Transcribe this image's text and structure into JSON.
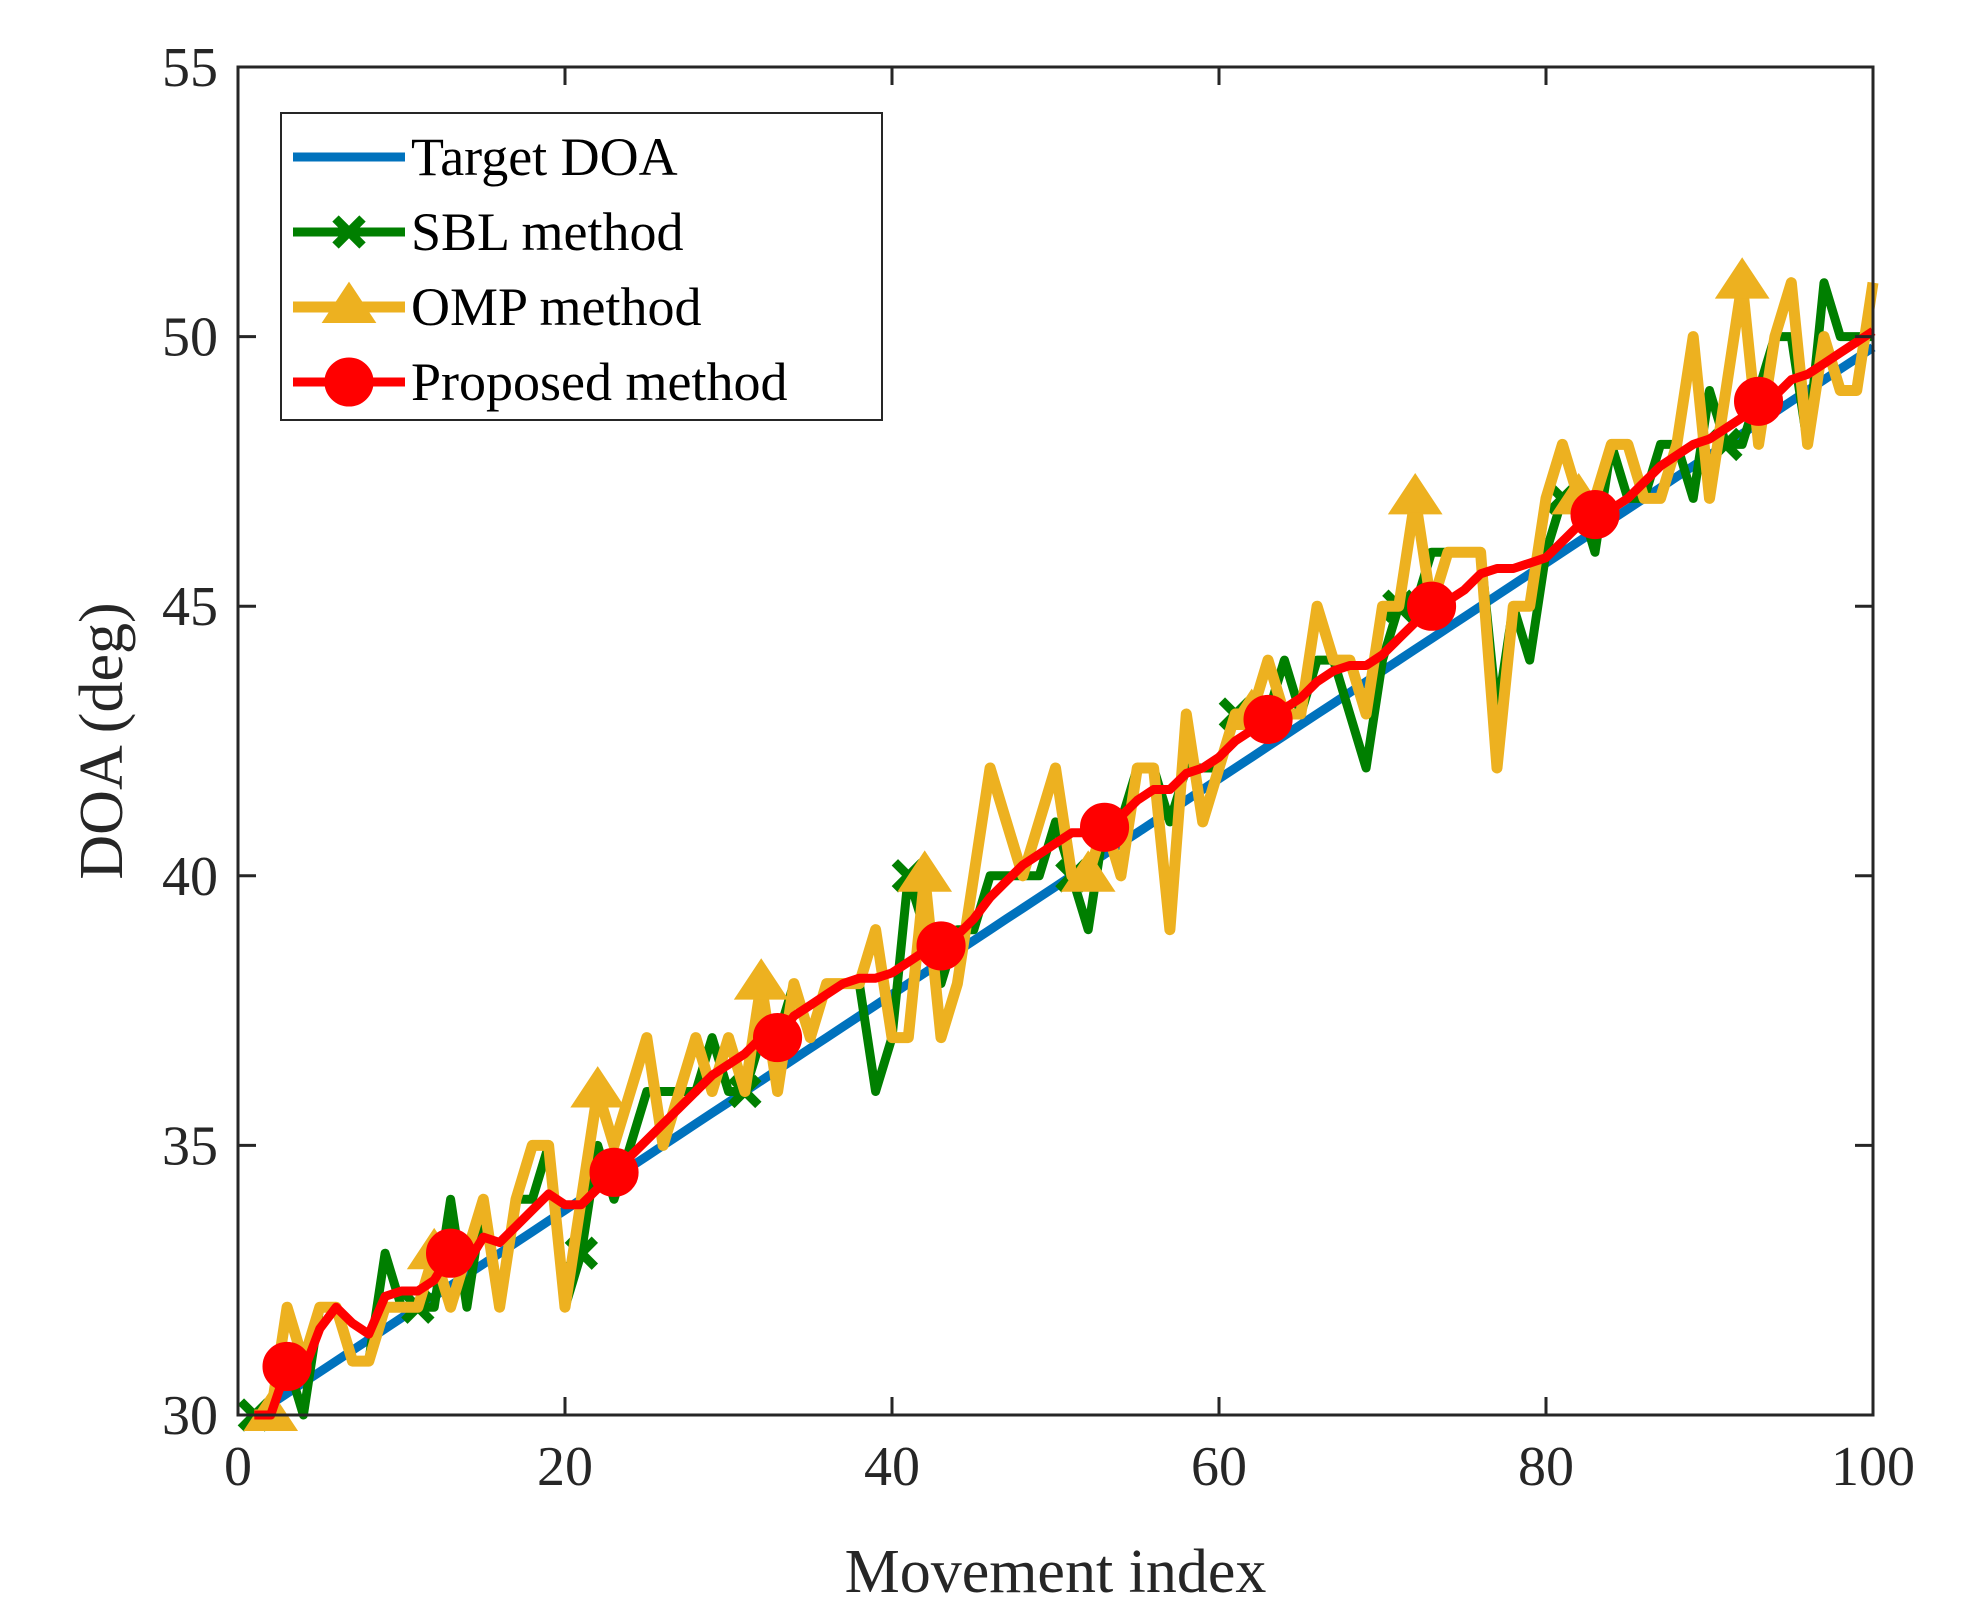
{
  "chart_data": {
    "type": "line",
    "title": "",
    "xlabel": "Movement index",
    "ylabel": "DOA (deg)",
    "xlim": [
      0,
      100
    ],
    "ylim": [
      30,
      55
    ],
    "xticks": [
      0,
      20,
      40,
      60,
      80,
      100
    ],
    "yticks": [
      30,
      35,
      40,
      45,
      50,
      55
    ],
    "xtick_labels": [
      "0",
      "20",
      "40",
      "60",
      "80",
      "100"
    ],
    "ytick_labels": [
      "30",
      "35",
      "40",
      "45",
      "50",
      "55"
    ],
    "grid": false,
    "legend": {
      "position": "top-left",
      "box": true
    },
    "x": [
      1,
      2,
      3,
      4,
      5,
      6,
      7,
      8,
      9,
      10,
      11,
      12,
      13,
      14,
      15,
      16,
      17,
      18,
      19,
      20,
      21,
      22,
      23,
      24,
      25,
      26,
      27,
      28,
      29,
      30,
      31,
      32,
      33,
      34,
      35,
      36,
      37,
      38,
      39,
      40,
      41,
      42,
      43,
      44,
      45,
      46,
      47,
      48,
      49,
      50,
      51,
      52,
      53,
      54,
      55,
      56,
      57,
      58,
      59,
      60,
      61,
      62,
      63,
      64,
      65,
      66,
      67,
      68,
      69,
      70,
      71,
      72,
      73,
      74,
      75,
      76,
      77,
      78,
      79,
      80,
      81,
      82,
      83,
      84,
      85,
      86,
      87,
      88,
      89,
      90,
      91,
      92,
      93,
      94,
      95,
      96,
      97,
      98,
      99,
      100
    ],
    "series": [
      {
        "name": "Target DOA",
        "color": "#0072BD",
        "marker": "none",
        "values": [
          30.0,
          30.2,
          30.4,
          30.6,
          30.8,
          31.0,
          31.2,
          31.4,
          31.6,
          31.8,
          32.0,
          32.2,
          32.4,
          32.6,
          32.8,
          33.0,
          33.2,
          33.4,
          33.6,
          33.8,
          34.0,
          34.2,
          34.4,
          34.6,
          34.8,
          35.0,
          35.2,
          35.4,
          35.6,
          35.8,
          36.0,
          36.2,
          36.4,
          36.6,
          36.8,
          37.0,
          37.2,
          37.4,
          37.6,
          37.8,
          38.0,
          38.2,
          38.4,
          38.6,
          38.8,
          39.0,
          39.2,
          39.4,
          39.6,
          39.8,
          40.0,
          40.2,
          40.4,
          40.6,
          40.8,
          41.0,
          41.2,
          41.4,
          41.6,
          41.8,
          42.0,
          42.2,
          42.4,
          42.6,
          42.8,
          43.0,
          43.2,
          43.4,
          43.6,
          43.8,
          44.0,
          44.2,
          44.4,
          44.6,
          44.8,
          45.0,
          45.2,
          45.4,
          45.6,
          45.8,
          46.0,
          46.2,
          46.4,
          46.6,
          46.8,
          47.0,
          47.2,
          47.4,
          47.6,
          47.8,
          48.0,
          48.2,
          48.4,
          48.6,
          48.8,
          49.0,
          49.2,
          49.4,
          49.6,
          49.8
        ]
      },
      {
        "name": "SBL method",
        "color": "#007F00",
        "marker": "x",
        "marker_indices": [
          1,
          11,
          21,
          31,
          41,
          51,
          61,
          71,
          81,
          91
        ],
        "values": [
          30,
          30,
          31,
          30,
          32,
          32,
          31,
          31,
          33,
          32,
          32,
          32,
          34,
          32,
          34,
          32,
          34,
          34,
          35,
          32,
          33,
          35,
          34,
          35,
          36,
          36,
          36,
          36,
          37,
          36,
          36,
          37,
          37,
          38,
          37,
          38,
          38,
          38,
          36,
          37,
          40,
          39,
          38,
          39,
          39,
          40,
          40,
          40,
          40,
          41,
          40,
          39,
          41,
          41,
          42,
          42,
          41,
          42,
          42,
          42,
          43,
          43,
          43,
          44,
          43,
          44,
          44,
          43,
          42,
          44,
          45,
          45,
          46,
          46,
          46,
          46,
          43,
          45,
          44,
          46,
          47,
          47,
          46,
          48,
          47,
          47,
          48,
          48,
          47,
          49,
          48,
          48,
          49,
          50,
          50,
          48,
          51,
          50,
          50,
          50
        ]
      },
      {
        "name": "OMP method",
        "color": "#EDB120",
        "marker": "triangle-up",
        "marker_indices": [
          2,
          12,
          22,
          32,
          42,
          52,
          62,
          72,
          82,
          92
        ],
        "values": [
          30,
          30,
          32,
          31,
          32,
          32,
          31,
          31,
          32,
          32,
          32,
          33,
          32,
          33,
          34,
          32,
          34,
          35,
          35,
          32,
          34,
          36,
          35,
          36,
          37,
          35,
          36,
          37,
          36,
          37,
          36,
          38,
          36,
          38,
          37,
          38,
          38,
          38,
          39,
          37,
          37,
          40,
          37,
          38,
          40,
          42,
          41,
          40,
          41,
          42,
          40,
          40,
          41,
          40,
          42,
          42,
          39,
          43,
          41,
          42,
          43,
          43,
          44,
          43,
          43,
          45,
          44,
          44,
          43,
          45,
          45,
          47,
          45,
          46,
          46,
          46,
          42,
          45,
          45,
          47,
          48,
          47,
          47,
          48,
          48,
          47,
          47,
          48,
          50,
          47,
          49,
          51,
          48,
          50,
          51,
          48,
          50,
          49,
          49,
          51
        ]
      },
      {
        "name": "Proposed method",
        "color": "#FF0000",
        "marker": "circle",
        "marker_indices": [
          3,
          13,
          23,
          33,
          43,
          53,
          63,
          73,
          83,
          93
        ],
        "values": [
          30.0,
          30.0,
          30.9,
          30.8,
          31.6,
          32.0,
          31.7,
          31.5,
          32.2,
          32.3,
          32.3,
          32.5,
          33.0,
          32.8,
          33.3,
          33.2,
          33.5,
          33.8,
          34.1,
          33.9,
          33.9,
          34.2,
          34.5,
          34.8,
          35.1,
          35.4,
          35.7,
          36.0,
          36.3,
          36.5,
          36.7,
          37.0,
          37.0,
          37.4,
          37.6,
          37.8,
          38.0,
          38.1,
          38.1,
          38.2,
          38.4,
          38.6,
          38.7,
          38.9,
          39.2,
          39.6,
          39.9,
          40.2,
          40.4,
          40.6,
          40.8,
          40.8,
          40.9,
          41.1,
          41.4,
          41.6,
          41.6,
          41.9,
          42.0,
          42.2,
          42.5,
          42.7,
          42.9,
          43.1,
          43.3,
          43.6,
          43.8,
          43.9,
          43.9,
          44.1,
          44.4,
          44.7,
          45.0,
          45.1,
          45.3,
          45.6,
          45.7,
          45.7,
          45.8,
          45.9,
          46.2,
          46.5,
          46.7,
          46.8,
          47.0,
          47.3,
          47.6,
          47.8,
          48.0,
          48.1,
          48.3,
          48.5,
          48.8,
          48.9,
          49.2,
          49.3,
          49.5,
          49.7,
          49.9,
          50.1
        ]
      }
    ]
  }
}
